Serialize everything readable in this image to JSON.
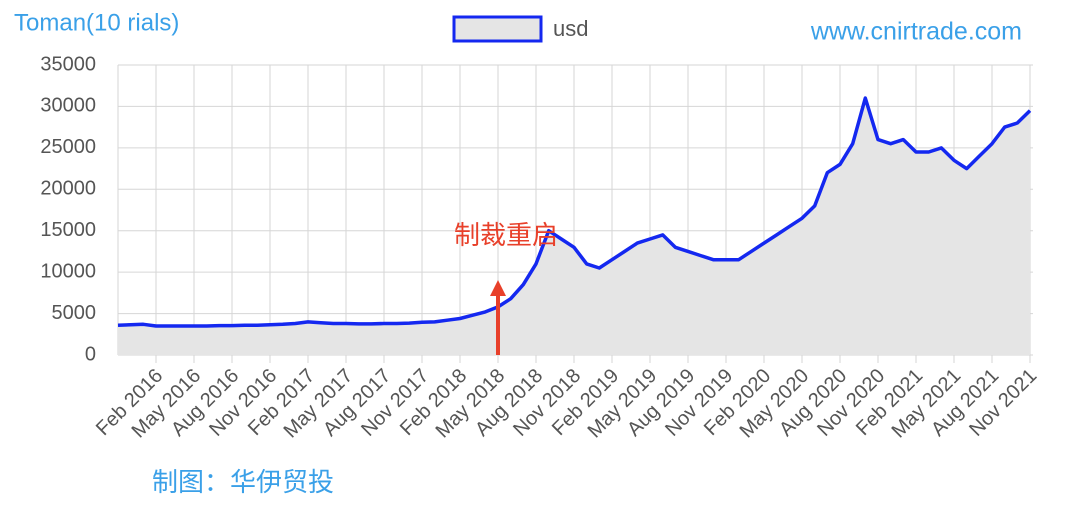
{
  "chart_data": {
    "type": "area",
    "y_axis_title": "Toman(10 rials)",
    "watermark": "www.cnirtrade.com",
    "credit": "制图：华伊贸投",
    "annotation": "制裁重启",
    "annotation_x": "2018-05",
    "series": [
      {
        "name": "usd",
        "color": "#1428f0",
        "fill": "#e5e5e5",
        "x": [
          "2015-11",
          "2015-12",
          "2016-01",
          "2016-02",
          "2016-03",
          "2016-04",
          "2016-05",
          "2016-06",
          "2016-07",
          "2016-08",
          "2016-09",
          "2016-10",
          "2016-11",
          "2016-12",
          "2017-01",
          "2017-02",
          "2017-03",
          "2017-04",
          "2017-05",
          "2017-06",
          "2017-07",
          "2017-08",
          "2017-09",
          "2017-10",
          "2017-11",
          "2017-12",
          "2018-01",
          "2018-02",
          "2018-03",
          "2018-04",
          "2018-05",
          "2018-06",
          "2018-07",
          "2018-08",
          "2018-09",
          "2018-10",
          "2018-11",
          "2018-12",
          "2019-01",
          "2019-02",
          "2019-03",
          "2019-04",
          "2019-05",
          "2019-06",
          "2019-07",
          "2019-08",
          "2019-09",
          "2019-10",
          "2019-11",
          "2019-12",
          "2020-01",
          "2020-02",
          "2020-03",
          "2020-04",
          "2020-05",
          "2020-06",
          "2020-07",
          "2020-08",
          "2020-09",
          "2020-10",
          "2020-11",
          "2020-12",
          "2021-01",
          "2021-02",
          "2021-03",
          "2021-04",
          "2021-05",
          "2021-06",
          "2021-07",
          "2021-08",
          "2021-09",
          "2021-10",
          "2021-11"
        ],
        "values": [
          3600,
          3650,
          3700,
          3500,
          3500,
          3500,
          3500,
          3500,
          3550,
          3550,
          3600,
          3600,
          3650,
          3700,
          3800,
          4000,
          3900,
          3800,
          3800,
          3750,
          3750,
          3800,
          3800,
          3850,
          3950,
          4000,
          4200,
          4400,
          4800,
          5200,
          5800,
          6800,
          8500,
          11000,
          15000,
          14000,
          13000,
          11000,
          10500,
          11500,
          12500,
          13500,
          14000,
          14500,
          13000,
          12500,
          12000,
          11500,
          11500,
          11500,
          12500,
          13500,
          14500,
          15500,
          16500,
          18000,
          22000,
          23000,
          25500,
          31000,
          26000,
          25500,
          26000,
          24500,
          24500,
          25000,
          23500,
          22500,
          24000,
          25500,
          27500,
          28000,
          29500
        ]
      }
    ],
    "xlim": [
      "2015-11",
      "2021-11"
    ],
    "xticks": [
      {
        "value": "2016-02",
        "label": "Feb 2016"
      },
      {
        "value": "2016-05",
        "label": "May 2016"
      },
      {
        "value": "2016-08",
        "label": "Aug 2016"
      },
      {
        "value": "2016-11",
        "label": "Nov 2016"
      },
      {
        "value": "2017-02",
        "label": "Feb 2017"
      },
      {
        "value": "2017-05",
        "label": "May 2017"
      },
      {
        "value": "2017-08",
        "label": "Aug 2017"
      },
      {
        "value": "2017-11",
        "label": "Nov 2017"
      },
      {
        "value": "2018-02",
        "label": "Feb 2018"
      },
      {
        "value": "2018-05",
        "label": "May 2018"
      },
      {
        "value": "2018-08",
        "label": "Aug 2018"
      },
      {
        "value": "2018-11",
        "label": "Nov 2018"
      },
      {
        "value": "2019-02",
        "label": "Feb 2019"
      },
      {
        "value": "2019-05",
        "label": "May 2019"
      },
      {
        "value": "2019-08",
        "label": "Aug 2019"
      },
      {
        "value": "2019-11",
        "label": "Nov 2019"
      },
      {
        "value": "2020-02",
        "label": "Feb 2020"
      },
      {
        "value": "2020-05",
        "label": "May 2020"
      },
      {
        "value": "2020-08",
        "label": "Aug 2020"
      },
      {
        "value": "2020-11",
        "label": "Nov 2020"
      },
      {
        "value": "2021-02",
        "label": "Feb 2021"
      },
      {
        "value": "2021-05",
        "label": "May 2021"
      },
      {
        "value": "2021-08",
        "label": "Aug 2021"
      },
      {
        "value": "2021-11",
        "label": "Nov 2021"
      }
    ],
    "ylim": [
      0,
      35000
    ],
    "yticks": [
      0,
      5000,
      10000,
      15000,
      20000,
      25000,
      30000,
      35000
    ],
    "grid": true
  }
}
